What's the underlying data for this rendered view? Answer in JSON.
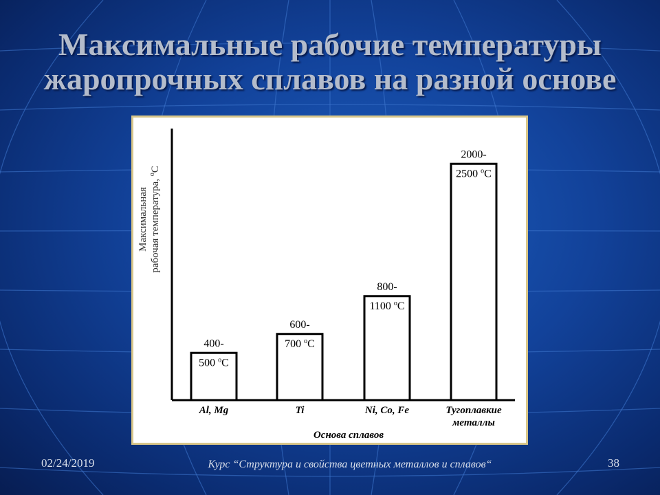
{
  "slide": {
    "title_line1": "Максимальные рабочие температуры",
    "title_line2": "жаропрочных сплавов на разной основе",
    "footer_date": "02/24/2019",
    "footer_course": "Курс “Структура и свойства цветных металлов и сплавов“",
    "page_number": "38"
  },
  "colors": {
    "background": "#12429a",
    "title": "#b4bccb",
    "frame_border": "#d8c689",
    "bar_fill": "#ffffff",
    "ink": "#000000"
  },
  "chart_data": {
    "type": "bar",
    "xlabel": "Основа сплавов",
    "ylabel_line1": "Максимальная",
    "ylabel_line2": "рабочая температура,",
    "ylabel_unit": "C",
    "ylabel_unit_sup": "o",
    "categories": [
      {
        "label_lines": [
          "Al, Mg"
        ]
      },
      {
        "label_lines": [
          "Ti"
        ]
      },
      {
        "label_lines": [
          "Ni, Co, Fe"
        ]
      },
      {
        "label_lines": [
          "Тугоплавкие",
          "металлы"
        ]
      }
    ],
    "series": [
      {
        "values": [
          500,
          700,
          1100,
          2500
        ],
        "ranges": [
          [
            400,
            500
          ],
          [
            600,
            700
          ],
          [
            800,
            1100
          ],
          [
            2000,
            2500
          ]
        ],
        "data_labels": [
          {
            "line1": "400-",
            "line2_value": "500",
            "sup": "o",
            "unit": "C"
          },
          {
            "line1": "600-",
            "line2_value": "700",
            "sup": "o",
            "unit": "C"
          },
          {
            "line1": "800-",
            "line2_value": "1100",
            "sup": "o",
            "unit": "C"
          },
          {
            "line1": "2000-",
            "line2_value": "2500",
            "sup": "o",
            "unit": "C"
          }
        ]
      }
    ],
    "y_ticks_shown": false,
    "grid": false,
    "legend": "none"
  }
}
